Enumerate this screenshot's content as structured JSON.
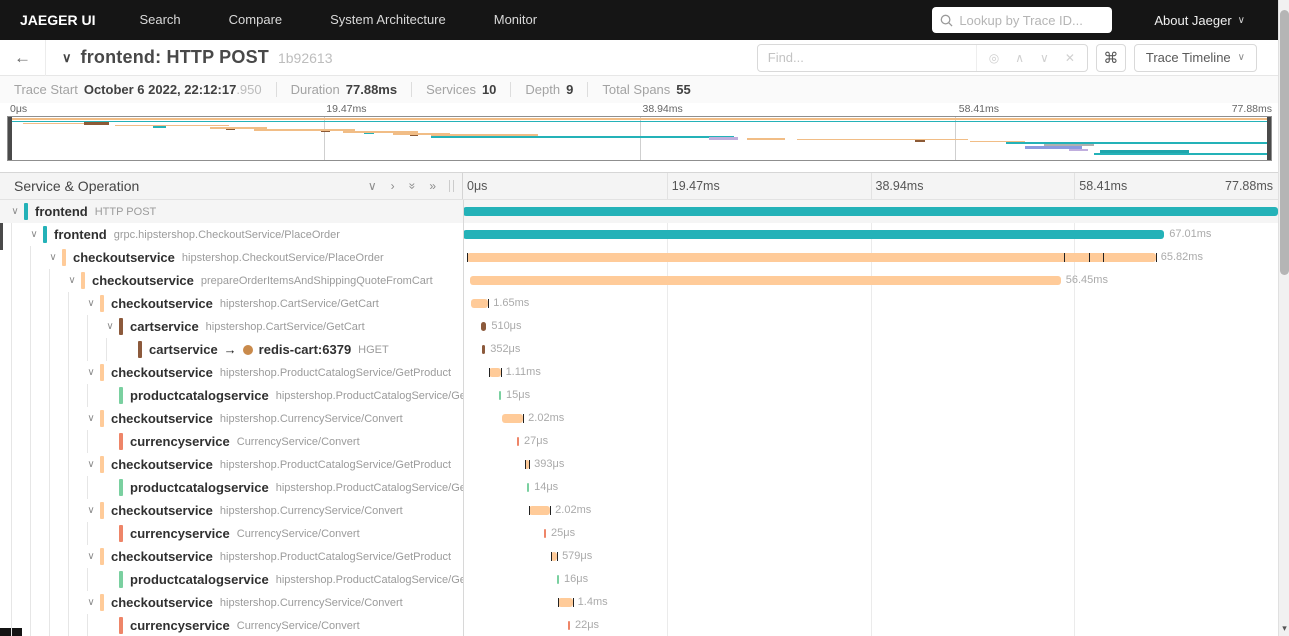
{
  "nav": {
    "brand": "JAEGER UI",
    "items": [
      "Search",
      "Compare",
      "System Architecture",
      "Monitor"
    ],
    "lookup_placeholder": "Lookup by Trace ID...",
    "about_label": "About Jaeger"
  },
  "header": {
    "title": "frontend: HTTP POST",
    "trace_id": "1b92613",
    "find_placeholder": "Find...",
    "view_button": "Trace Timeline"
  },
  "icons": {
    "back_arrow": "←",
    "chevron_down": "∨",
    "chevron_right": "›",
    "double_chevron": "»",
    "find_target": "◎",
    "find_prev": "∧",
    "find_next": "∨",
    "find_clear": "✕",
    "shortcut": "⌘",
    "arrow_right": "→",
    "scroll_down": "▾"
  },
  "stats": [
    {
      "label": "Trace Start",
      "value": "October 6 2022, 22:12:17",
      "suffix": ".950"
    },
    {
      "label": "Duration",
      "value": "77.88ms"
    },
    {
      "label": "Services",
      "value": "10"
    },
    {
      "label": "Depth",
      "value": "9"
    },
    {
      "label": "Total Spans",
      "value": "55"
    }
  ],
  "timeline": {
    "duration_ms": 77.88,
    "ticks": [
      "0μs",
      "19.47ms",
      "38.94ms",
      "58.41ms",
      "77.88ms"
    ]
  },
  "table": {
    "header_title": "Service & Operation"
  },
  "colors": {
    "frontend": "#24b2b8",
    "checkoutservice": "#ffcb99",
    "cartservice": "#8c5a3c",
    "productcatalogservice": "#7ad0a0",
    "currencyservice": "#ee8568",
    "redis": "#c98a4b"
  },
  "minimap": {
    "palette": {
      "o": "#f1bd86",
      "t": "#24b2b8",
      "b": "#8c5a36",
      "p": "#c0aede",
      "bl": "#8b9bdf",
      "gr": "#b0b0b0",
      "td": "#1fa6ad"
    },
    "segments": [
      [
        0,
        1,
        100,
        2,
        "o"
      ],
      [
        0,
        3.5,
        100,
        1.5,
        "t"
      ],
      [
        1.2,
        5.5,
        5,
        1.5,
        "o"
      ],
      [
        6,
        4.5,
        2,
        3,
        "b"
      ],
      [
        8.5,
        7.5,
        9,
        1.5,
        "o"
      ],
      [
        11.5,
        9,
        1,
        1.5,
        "t"
      ],
      [
        16,
        10,
        4.5,
        1.5,
        "o"
      ],
      [
        17.3,
        11.5,
        0.7,
        1.5,
        "b"
      ],
      [
        19.5,
        12,
        8,
        1.5,
        "o"
      ],
      [
        24.8,
        13.5,
        0.7,
        1.5,
        "b"
      ],
      [
        26.5,
        14,
        6,
        1.5,
        "o"
      ],
      [
        28.2,
        15.5,
        0.8,
        1.5,
        "t"
      ],
      [
        30.5,
        16,
        4.5,
        1.5,
        "o"
      ],
      [
        31.8,
        17.5,
        0.7,
        1.5,
        "b"
      ],
      [
        33.5,
        17,
        8.5,
        1.5,
        "o"
      ],
      [
        33.5,
        18.5,
        24,
        2,
        "t"
      ],
      [
        55.5,
        19.5,
        2.3,
        3,
        "p"
      ],
      [
        58.5,
        21,
        3,
        1.5,
        "o"
      ],
      [
        62.5,
        21.5,
        13.5,
        1.5,
        "o"
      ],
      [
        71.8,
        22.5,
        0.8,
        2,
        "b"
      ],
      [
        76.2,
        23.5,
        4.3,
        1.5,
        "o"
      ],
      [
        79,
        24.5,
        21,
        2,
        "t"
      ],
      [
        82,
        27,
        4,
        2,
        "gr"
      ],
      [
        80.5,
        29,
        4.5,
        2.5,
        "bl"
      ],
      [
        84,
        31.5,
        1.5,
        2,
        "p"
      ],
      [
        86.5,
        33,
        7,
        3,
        "td"
      ],
      [
        86,
        36,
        14,
        2,
        "t"
      ]
    ]
  },
  "rows": [
    {
      "level": 0,
      "expandable": true,
      "highlight": true,
      "color": "frontend",
      "service": "frontend",
      "operation": "HTTP POST",
      "bar": {
        "start_ms": 0,
        "dur_ms": 77.88,
        "label": ""
      }
    },
    {
      "level": 1,
      "expandable": true,
      "color": "frontend",
      "service": "frontend",
      "operation": "grpc.hipstershop.CheckoutService/PlaceOrder",
      "bar": {
        "start_ms": 0,
        "dur_ms": 67.01,
        "label": "67.01ms"
      }
    },
    {
      "level": 2,
      "expandable": true,
      "color": "checkoutservice",
      "service": "checkoutservice",
      "operation": "hipstershop.CheckoutService/PlaceOrder",
      "bar": {
        "start_ms": 0.38,
        "dur_ms": 65.82,
        "label": "65.82ms",
        "ticks_ms": [
          0.38,
          57.4,
          59.8,
          61.2,
          66.2
        ]
      }
    },
    {
      "level": 3,
      "expandable": true,
      "color": "checkoutservice",
      "service": "checkoutservice",
      "operation": "prepareOrderItemsAndShippingQuoteFromCart",
      "bar": {
        "start_ms": 0.67,
        "dur_ms": 56.45,
        "label": "56.45ms"
      }
    },
    {
      "level": 4,
      "expandable": true,
      "color": "checkoutservice",
      "service": "checkoutservice",
      "operation": "hipstershop.CartService/GetCart",
      "bar": {
        "start_ms": 0.76,
        "dur_ms": 1.65,
        "label": "1.65ms",
        "ticks_ms": [
          2.41
        ]
      }
    },
    {
      "level": 5,
      "expandable": true,
      "color": "cartservice",
      "service": "cartservice",
      "operation": "hipstershop.CartService/GetCart",
      "bar": {
        "start_ms": 1.72,
        "dur_ms": 0.51,
        "label": "510μs"
      }
    },
    {
      "level": 6,
      "expandable": false,
      "color": "cartservice",
      "service": "cartservice",
      "arrow": true,
      "peer": "redis-cart:6379",
      "peer_color": "redis",
      "operation": "HGET",
      "bar": {
        "start_ms": 1.77,
        "dur_ms": 0.352,
        "label": "352μs"
      }
    },
    {
      "level": 4,
      "expandable": true,
      "color": "checkoutservice",
      "service": "checkoutservice",
      "operation": "hipstershop.ProductCatalogService/GetProduct",
      "bar": {
        "start_ms": 2.48,
        "dur_ms": 1.11,
        "label": "1.11ms",
        "ticks_ms": [
          2.48,
          3.59
        ]
      }
    },
    {
      "level": 5,
      "expandable": false,
      "color": "productcatalogservice",
      "service": "productcatalogservice",
      "operation": "hipstershop.ProductCatalogService/GetProduct",
      "bar": {
        "start_ms": 3.44,
        "dur_ms": 0.015,
        "label": "15μs"
      }
    },
    {
      "level": 4,
      "expandable": true,
      "color": "checkoutservice",
      "service": "checkoutservice",
      "operation": "hipstershop.CurrencyService/Convert",
      "bar": {
        "start_ms": 3.73,
        "dur_ms": 2.02,
        "label": "2.02ms",
        "ticks_ms": [
          5.75
        ]
      }
    },
    {
      "level": 5,
      "expandable": false,
      "color": "currencyservice",
      "service": "currencyservice",
      "operation": "CurrencyService/Convert",
      "bar": {
        "start_ms": 5.16,
        "dur_ms": 0.027,
        "label": "27μs"
      }
    },
    {
      "level": 4,
      "expandable": true,
      "color": "checkoutservice",
      "service": "checkoutservice",
      "operation": "hipstershop.ProductCatalogService/GetProduct",
      "bar": {
        "start_ms": 5.93,
        "dur_ms": 0.393,
        "label": "393μs",
        "ticks_ms": [
          5.93,
          6.32
        ]
      }
    },
    {
      "level": 5,
      "expandable": false,
      "color": "productcatalogservice",
      "service": "productcatalogservice",
      "operation": "hipstershop.ProductCatalogService/GetProduct",
      "bar": {
        "start_ms": 6.12,
        "dur_ms": 0.014,
        "label": "14μs"
      }
    },
    {
      "level": 4,
      "expandable": true,
      "color": "checkoutservice",
      "service": "checkoutservice",
      "operation": "hipstershop.CurrencyService/Convert",
      "bar": {
        "start_ms": 6.31,
        "dur_ms": 2.02,
        "label": "2.02ms",
        "ticks_ms": [
          6.31,
          8.33
        ]
      }
    },
    {
      "level": 5,
      "expandable": false,
      "color": "currencyservice",
      "service": "currencyservice",
      "operation": "CurrencyService/Convert",
      "bar": {
        "start_ms": 7.74,
        "dur_ms": 0.025,
        "label": "25μs"
      }
    },
    {
      "level": 4,
      "expandable": true,
      "color": "checkoutservice",
      "service": "checkoutservice",
      "operation": "hipstershop.ProductCatalogService/GetProduct",
      "bar": {
        "start_ms": 8.41,
        "dur_ms": 0.579,
        "label": "579μs",
        "ticks_ms": [
          8.41,
          8.99
        ]
      }
    },
    {
      "level": 5,
      "expandable": false,
      "color": "productcatalogservice",
      "service": "productcatalogservice",
      "operation": "hipstershop.ProductCatalogService/GetProduct",
      "bar": {
        "start_ms": 8.98,
        "dur_ms": 0.016,
        "label": "16μs"
      }
    },
    {
      "level": 4,
      "expandable": true,
      "color": "checkoutservice",
      "service": "checkoutservice",
      "operation": "hipstershop.CurrencyService/Convert",
      "bar": {
        "start_ms": 9.08,
        "dur_ms": 1.4,
        "label": "1.4ms",
        "ticks_ms": [
          9.08,
          10.48
        ]
      }
    },
    {
      "level": 5,
      "expandable": false,
      "color": "currencyservice",
      "service": "currencyservice",
      "operation": "CurrencyService/Convert",
      "bar": {
        "start_ms": 10.03,
        "dur_ms": 0.022,
        "label": "22μs"
      }
    }
  ]
}
